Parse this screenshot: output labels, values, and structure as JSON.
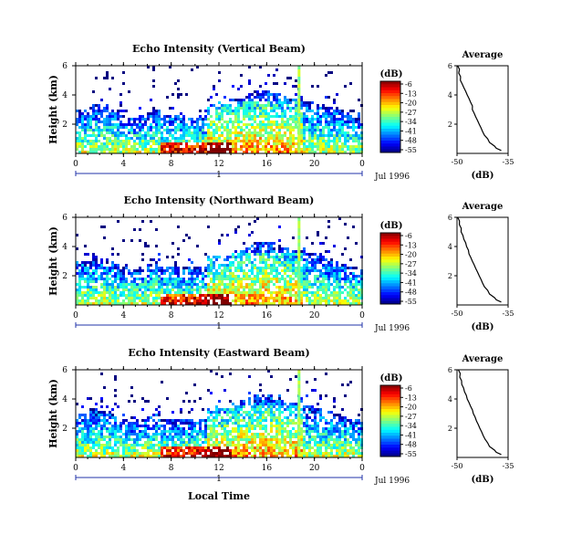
{
  "common": {
    "date_label": "Jul 1996",
    "day_label": "1",
    "local_time_label": "Local Time",
    "height_label": "Height (km)",
    "colorbar_unit": "(dB)",
    "colorbar_ticks": [
      "-6",
      "-13",
      "-20",
      "-27",
      "-34",
      "-41",
      "-48",
      "-55"
    ],
    "avg_title": "Average",
    "avg_xlabel": "(dB)",
    "avg_xticks": [
      "-50",
      "-35"
    ],
    "x_ticks": [
      "0",
      "4",
      "8",
      "12",
      "16",
      "20",
      "0"
    ],
    "y_ticks": [
      "6",
      "4",
      "2"
    ]
  },
  "panels": [
    {
      "title": "Echo Intensity (Vertical Beam)"
    },
    {
      "title": "Echo Intensity (Northward Beam)"
    },
    {
      "title": "Echo Intensity (Eastward Beam)"
    }
  ],
  "chart_data": [
    {
      "type": "heatmap",
      "title": "Echo Intensity (Vertical Beam)",
      "xlabel": "Local Time",
      "ylabel": "Height (km)",
      "x_range_hours": [
        0,
        24
      ],
      "y_range_km": [
        0,
        6
      ],
      "colorbar_range_db": [
        -55,
        -6
      ],
      "average_profile": {
        "title": "Average",
        "xlabel": "(dB)",
        "xlim": [
          -50,
          -35
        ],
        "height_km": [
          6,
          5.5,
          5,
          4.5,
          4,
          3.5,
          3,
          2.5,
          2,
          1.5,
          1,
          0.5,
          0.2
        ],
        "db": [
          -49.8,
          -49.5,
          -49,
          -48,
          -47,
          -46,
          -45.5,
          -44.5,
          -43.5,
          -42.5,
          -41,
          -39,
          -37
        ]
      }
    },
    {
      "type": "heatmap",
      "title": "Echo Intensity (Northward Beam)",
      "xlabel": "Local Time",
      "ylabel": "Height (km)",
      "x_range_hours": [
        0,
        24
      ],
      "y_range_km": [
        0,
        6
      ],
      "colorbar_range_db": [
        -55,
        -6
      ],
      "average_profile": {
        "title": "Average",
        "xlabel": "(dB)",
        "xlim": [
          -50,
          -35
        ],
        "height_km": [
          6,
          5.5,
          5,
          4.5,
          4,
          3.5,
          3,
          2.5,
          2,
          1.5,
          1,
          0.5,
          0.2
        ],
        "db": [
          -49.8,
          -49.3,
          -48.8,
          -48,
          -47.2,
          -46.5,
          -45.5,
          -44.5,
          -43.5,
          -42.5,
          -41,
          -39,
          -37
        ]
      }
    },
    {
      "type": "heatmap",
      "title": "Echo Intensity (Eastward Beam)",
      "xlabel": "Local Time",
      "ylabel": "Height (km)",
      "x_range_hours": [
        0,
        24
      ],
      "y_range_km": [
        0,
        6
      ],
      "colorbar_range_db": [
        -55,
        -6
      ],
      "average_profile": {
        "title": "Average",
        "xlabel": "(dB)",
        "xlim": [
          -50,
          -35
        ],
        "height_km": [
          6,
          5.5,
          5,
          4.5,
          4,
          3.5,
          3,
          2.5,
          2,
          1.5,
          1,
          0.5,
          0.2
        ],
        "db": [
          -49.6,
          -49.2,
          -48.6,
          -47.8,
          -47,
          -46,
          -45.2,
          -44.3,
          -43.3,
          -42.3,
          -41,
          -39,
          -37
        ]
      }
    }
  ]
}
